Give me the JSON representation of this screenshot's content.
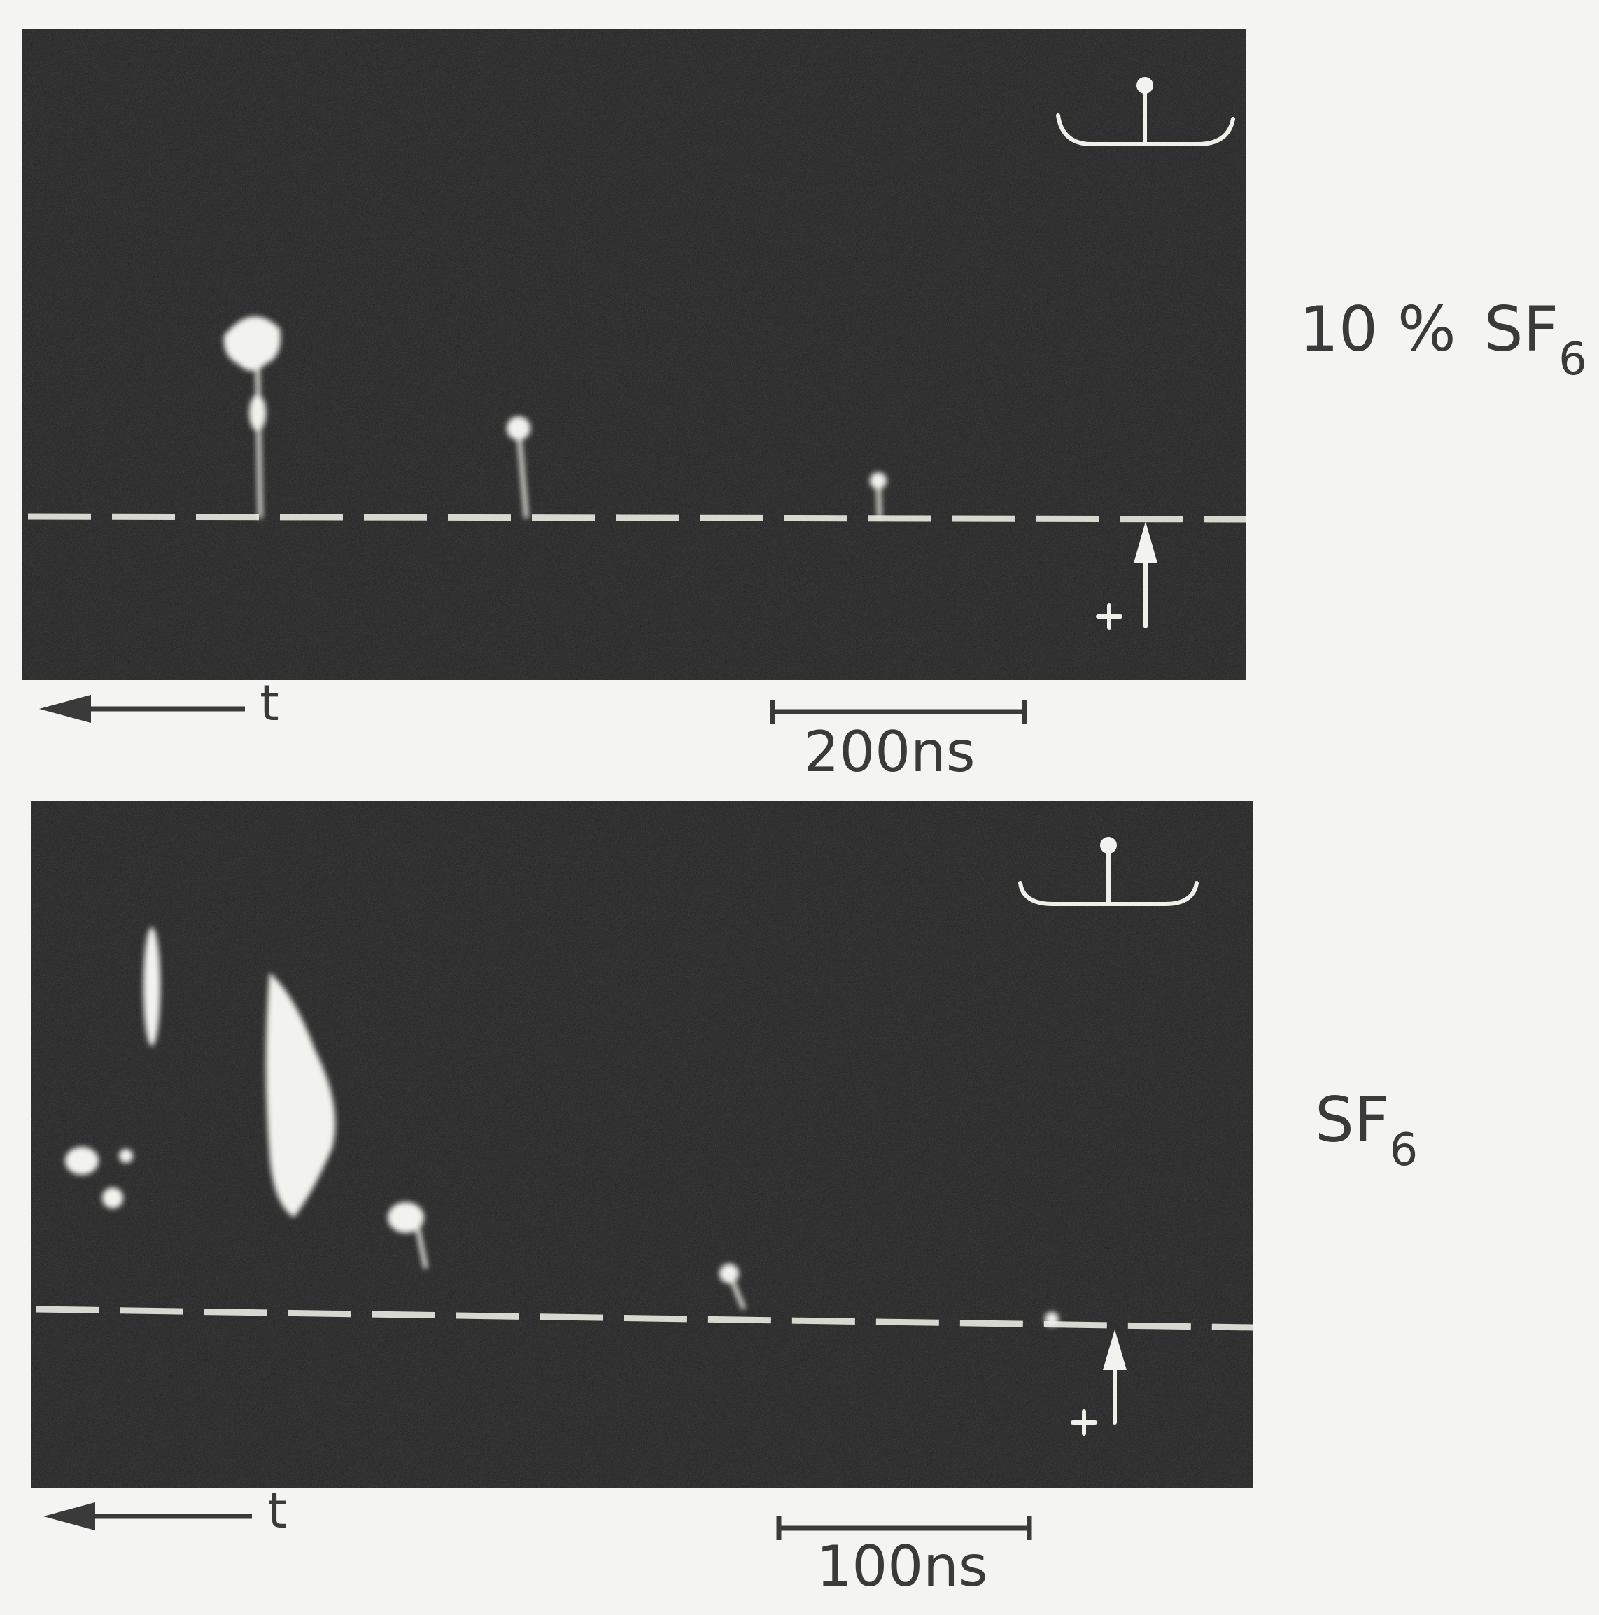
{
  "panels": [
    {
      "label": {
        "prefix": "10 %",
        "gas": "SF",
        "subscript": "6"
      },
      "time_axis": "t",
      "scale_bar": "200ns"
    },
    {
      "label": {
        "gas": "SF",
        "subscript": "6"
      },
      "time_axis": "t",
      "scale_bar": "100ns"
    }
  ]
}
